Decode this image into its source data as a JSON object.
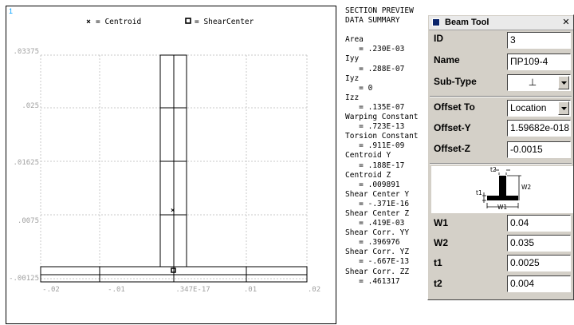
{
  "plot": {
    "viewport_id": "1",
    "legend": {
      "centroid_label": "= Centroid",
      "shear_center_label": "= ShearCenter"
    },
    "y_ticks": [
      ".03375",
      ".025",
      ".01625",
      ".0075",
      "-.00125"
    ],
    "x_ticks": [
      "-.02",
      "-.01",
      ".347E-17",
      ".01",
      ".02"
    ]
  },
  "summary": {
    "lines": [
      "SECTION PREVIEW",
      "DATA SUMMARY",
      "",
      "Area",
      "   = .230E-03",
      "Iyy",
      "   = .288E-07",
      "Iyz",
      "   = 0",
      "Izz",
      "   = .135E-07",
      "Warping Constant",
      "   = .723E-13",
      "Torsion Constant",
      "   = .911E-09",
      "Centroid Y",
      "   = .188E-17",
      "Centroid Z",
      "   = .009891",
      "Shear Center Y",
      "   = -.371E-16",
      "Shear Center Z",
      "   = .419E-03",
      "Shear Corr. YY",
      "   = .396976",
      "Shear Corr. YZ",
      "   = -.667E-13",
      "Shear Corr. ZZ",
      "   = .461317"
    ]
  },
  "beam_tool": {
    "title": "Beam Tool",
    "id_label": "ID",
    "id_value": "3",
    "name_label": "Name",
    "name_value": "ПР109-4",
    "subtype_label": "Sub-Type",
    "subtype_value": "⊥",
    "offset_to_label": "Offset To",
    "offset_to_value": "Location",
    "offset_y_label": "Offset-Y",
    "offset_y_value": "1.59682e-018",
    "offset_z_label": "Offset-Z",
    "offset_z_value": "-0.0015",
    "diagram_labels": {
      "t2": "t2",
      "t1": "t1",
      "w2": "W2",
      "w1": "W1"
    },
    "w1_label": "W1",
    "w1_value": "0.04",
    "w2_label": "W2",
    "w2_value": "0.035",
    "t1_label": "t1",
    "t1_value": "0.0025",
    "t2_label": "t2",
    "t2_value": "0.004"
  },
  "colors": {
    "grid": "#c8c8c8",
    "tick_text": "#a0a0a0",
    "viewport_id": "#00a0ff",
    "dialog_bg": "#d4d0c8"
  }
}
